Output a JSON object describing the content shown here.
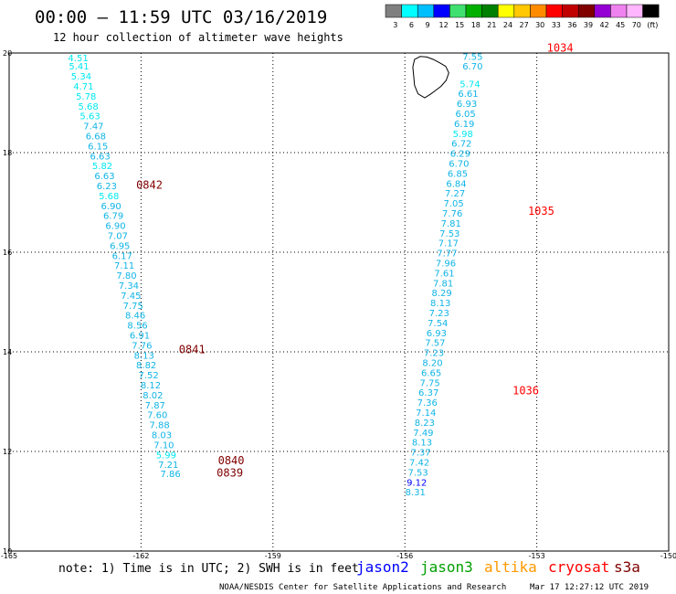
{
  "header": {
    "title": "00:00 – 11:59 UTC 03/16/2019",
    "subtitle": "12 hour collection of altimeter wave heights"
  },
  "colorbar": {
    "labels": [
      "3",
      "6",
      "9",
      "12",
      "15",
      "18",
      "21",
      "24",
      "27",
      "30",
      "33",
      "36",
      "39",
      "42",
      "45",
      "70",
      "(ft)"
    ],
    "colors": [
      "#808080",
      "#00ffff",
      "#00bfff",
      "#0000ff",
      "#40e070",
      "#00b000",
      "#008000",
      "#ffff00",
      "#ffc800",
      "#ff8c00",
      "#ff0000",
      "#c00000",
      "#800000",
      "#9400d3",
      "#ee82ee",
      "#ffb6ff",
      "#000000"
    ]
  },
  "footer": {
    "note": "note: 1) Time is in UTC; 2) SWH is in feet",
    "satellites": [
      {
        "name": "jason2",
        "color": "#0000ff"
      },
      {
        "name": "jason3",
        "color": "#00a000"
      },
      {
        "name": "altika",
        "color": "#ff9900"
      },
      {
        "name": "cryosat",
        "color": "#ff0000"
      },
      {
        "name": "s3a",
        "color": "#800000"
      }
    ],
    "credit": "NOAA/NESDIS Center for Satellite Applications and Research",
    "timestamp": "Mar 17 12:27:12 UTC 2019"
  },
  "chart_data": {
    "type": "scatter",
    "title": "",
    "xlabel": "",
    "ylabel": "",
    "xlim": [
      -165,
      -150
    ],
    "ylim": [
      10,
      20
    ],
    "x_ticks": [
      "-165",
      "-162",
      "-159",
      "-156",
      "-153",
      "-150"
    ],
    "y_ticks": [
      "10",
      "12",
      "14",
      "16",
      "18",
      "20"
    ],
    "grid": true,
    "units": "ft",
    "colors": {
      "cyan": "#00e8f0",
      "skyblue": "#10b4e6",
      "blue": "#0000ff",
      "maroon": "#800000",
      "red": "#ff0000"
    },
    "tracks": [
      {
        "name": "west",
        "points": [
          {
            "lon": -163.43,
            "lat": 19.9,
            "v": "4.51"
          },
          {
            "lon": -163.41,
            "lat": 19.73,
            "v": "5.41"
          },
          {
            "lon": -163.36,
            "lat": 19.53,
            "v": "5.34"
          },
          {
            "lon": -163.31,
            "lat": 19.33,
            "v": "4.71"
          },
          {
            "lon": -163.25,
            "lat": 19.13,
            "v": "5.78"
          },
          {
            "lon": -163.2,
            "lat": 18.93,
            "v": "5.68"
          },
          {
            "lon": -163.16,
            "lat": 18.73,
            "v": "5.63"
          },
          {
            "lon": -163.08,
            "lat": 18.53,
            "v": "7.47"
          },
          {
            "lon": -163.03,
            "lat": 18.33,
            "v": "6.68"
          },
          {
            "lon": -162.98,
            "lat": 18.13,
            "v": "6.15"
          },
          {
            "lon": -162.93,
            "lat": 17.93,
            "v": "6.63"
          },
          {
            "lon": -162.88,
            "lat": 17.73,
            "v": "5.82"
          },
          {
            "lon": -162.83,
            "lat": 17.53,
            "v": "6.63"
          },
          {
            "lon": -162.78,
            "lat": 17.33,
            "v": "6.23"
          },
          {
            "lon": -162.73,
            "lat": 17.13,
            "v": "5.68"
          },
          {
            "lon": -162.68,
            "lat": 16.93,
            "v": "6.90"
          },
          {
            "lon": -162.63,
            "lat": 16.73,
            "v": "6.79"
          },
          {
            "lon": -162.58,
            "lat": 16.53,
            "v": "6.90"
          },
          {
            "lon": -162.53,
            "lat": 16.33,
            "v": "7.07"
          },
          {
            "lon": -162.48,
            "lat": 16.13,
            "v": "6.95"
          },
          {
            "lon": -162.43,
            "lat": 15.93,
            "v": "6.17"
          },
          {
            "lon": -162.38,
            "lat": 15.73,
            "v": "7.11"
          },
          {
            "lon": -162.33,
            "lat": 15.53,
            "v": "7.80"
          },
          {
            "lon": -162.28,
            "lat": 15.33,
            "v": "7.34"
          },
          {
            "lon": -162.23,
            "lat": 15.13,
            "v": "7.45"
          },
          {
            "lon": -162.18,
            "lat": 14.93,
            "v": "7.75"
          },
          {
            "lon": -162.13,
            "lat": 14.73,
            "v": "8.46"
          },
          {
            "lon": -162.08,
            "lat": 14.53,
            "v": "8.56"
          },
          {
            "lon": -162.03,
            "lat": 14.33,
            "v": "6.91"
          },
          {
            "lon": -161.98,
            "lat": 14.13,
            "v": "7.76"
          },
          {
            "lon": -161.93,
            "lat": 13.93,
            "v": "8.13"
          },
          {
            "lon": -161.88,
            "lat": 13.73,
            "v": "8.82"
          },
          {
            "lon": -161.83,
            "lat": 13.53,
            "v": "7.52"
          },
          {
            "lon": -161.78,
            "lat": 13.33,
            "v": "8.12"
          },
          {
            "lon": -161.73,
            "lat": 13.13,
            "v": "8.02"
          },
          {
            "lon": -161.68,
            "lat": 12.93,
            "v": "7.87"
          },
          {
            "lon": -161.63,
            "lat": 12.73,
            "v": "7.60"
          },
          {
            "lon": -161.58,
            "lat": 12.53,
            "v": "7.88"
          },
          {
            "lon": -161.53,
            "lat": 12.33,
            "v": "8.03"
          },
          {
            "lon": -161.48,
            "lat": 12.13,
            "v": "7.10"
          },
          {
            "lon": -161.43,
            "lat": 11.93,
            "v": "5.99"
          },
          {
            "lon": -161.38,
            "lat": 11.73,
            "v": "7.21"
          },
          {
            "lon": -161.33,
            "lat": 11.55,
            "v": "7.86"
          }
        ],
        "times": [
          {
            "lon": -161.81,
            "lat": 17.35,
            "t": "0842"
          },
          {
            "lon": -160.84,
            "lat": 14.05,
            "t": "0841"
          },
          {
            "lon": -159.95,
            "lat": 11.82,
            "t": "0840"
          },
          {
            "lon": -159.98,
            "lat": 11.57,
            "t": "0839"
          }
        ]
      },
      {
        "name": "east",
        "points": [
          {
            "lon": -154.46,
            "lat": 19.93,
            "v": "7.55"
          },
          {
            "lon": -154.46,
            "lat": 19.73,
            "v": "6.70"
          },
          {
            "lon": -154.52,
            "lat": 19.38,
            "v": "5.74"
          },
          {
            "lon": -154.56,
            "lat": 19.18,
            "v": "6.61"
          },
          {
            "lon": -154.59,
            "lat": 18.98,
            "v": "6.93"
          },
          {
            "lon": -154.62,
            "lat": 18.78,
            "v": "6.05"
          },
          {
            "lon": -154.65,
            "lat": 18.58,
            "v": "6.19"
          },
          {
            "lon": -154.68,
            "lat": 18.38,
            "v": "5.98"
          },
          {
            "lon": -154.71,
            "lat": 18.18,
            "v": "6.72"
          },
          {
            "lon": -154.74,
            "lat": 17.98,
            "v": "6.29"
          },
          {
            "lon": -154.77,
            "lat": 17.78,
            "v": "6.70"
          },
          {
            "lon": -154.8,
            "lat": 17.58,
            "v": "6.85"
          },
          {
            "lon": -154.83,
            "lat": 17.38,
            "v": "6.84"
          },
          {
            "lon": -154.86,
            "lat": 17.18,
            "v": "7.27"
          },
          {
            "lon": -154.89,
            "lat": 16.98,
            "v": "7.05"
          },
          {
            "lon": -154.92,
            "lat": 16.78,
            "v": "7.76"
          },
          {
            "lon": -154.95,
            "lat": 16.58,
            "v": "7.81"
          },
          {
            "lon": -154.98,
            "lat": 16.38,
            "v": "7.53"
          },
          {
            "lon": -155.01,
            "lat": 16.18,
            "v": "7.17"
          },
          {
            "lon": -155.04,
            "lat": 15.98,
            "v": "7.77"
          },
          {
            "lon": -155.07,
            "lat": 15.78,
            "v": "7.96"
          },
          {
            "lon": -155.1,
            "lat": 15.58,
            "v": "7.61"
          },
          {
            "lon": -155.13,
            "lat": 15.38,
            "v": "7.81"
          },
          {
            "lon": -155.16,
            "lat": 15.18,
            "v": "8.29"
          },
          {
            "lon": -155.19,
            "lat": 14.98,
            "v": "8.13"
          },
          {
            "lon": -155.22,
            "lat": 14.78,
            "v": "7.23"
          },
          {
            "lon": -155.25,
            "lat": 14.58,
            "v": "7.54"
          },
          {
            "lon": -155.28,
            "lat": 14.38,
            "v": "6.93"
          },
          {
            "lon": -155.31,
            "lat": 14.18,
            "v": "7.57"
          },
          {
            "lon": -155.34,
            "lat": 13.98,
            "v": "7.23"
          },
          {
            "lon": -155.37,
            "lat": 13.78,
            "v": "8.20"
          },
          {
            "lon": -155.4,
            "lat": 13.58,
            "v": "6.65"
          },
          {
            "lon": -155.43,
            "lat": 13.38,
            "v": "7.75"
          },
          {
            "lon": -155.46,
            "lat": 13.18,
            "v": "6.37"
          },
          {
            "lon": -155.49,
            "lat": 12.98,
            "v": "7.36"
          },
          {
            "lon": -155.52,
            "lat": 12.78,
            "v": "7.14"
          },
          {
            "lon": -155.55,
            "lat": 12.58,
            "v": "8.23"
          },
          {
            "lon": -155.58,
            "lat": 12.38,
            "v": "7.49"
          },
          {
            "lon": -155.61,
            "lat": 12.18,
            "v": "8.13"
          },
          {
            "lon": -155.64,
            "lat": 11.98,
            "v": "7.37"
          },
          {
            "lon": -155.67,
            "lat": 11.78,
            "v": "7.42"
          },
          {
            "lon": -155.7,
            "lat": 11.58,
            "v": "7.53"
          },
          {
            "lon": -155.73,
            "lat": 11.38,
            "v": "9.12"
          },
          {
            "lon": -155.76,
            "lat": 11.18,
            "v": "8.31"
          }
        ],
        "times": [
          {
            "lon": -152.47,
            "lat": 20.1,
            "t": "1034"
          },
          {
            "lon": -152.9,
            "lat": 16.83,
            "t": "1035"
          },
          {
            "lon": -153.25,
            "lat": 13.22,
            "t": "1036"
          }
        ]
      }
    ],
    "coastline": [
      [
        -155.07,
        19.73
      ],
      [
        -155.2,
        19.8
      ],
      [
        -155.35,
        19.87
      ],
      [
        -155.5,
        19.92
      ],
      [
        -155.65,
        19.93
      ],
      [
        -155.78,
        19.87
      ],
      [
        -155.82,
        19.72
      ],
      [
        -155.8,
        19.55
      ],
      [
        -155.78,
        19.35
      ],
      [
        -155.7,
        19.18
      ],
      [
        -155.55,
        19.1
      ],
      [
        -155.42,
        19.17
      ],
      [
        -155.3,
        19.25
      ],
      [
        -155.18,
        19.33
      ],
      [
        -155.06,
        19.45
      ],
      [
        -155.0,
        19.6
      ],
      [
        -155.07,
        19.73
      ]
    ]
  }
}
